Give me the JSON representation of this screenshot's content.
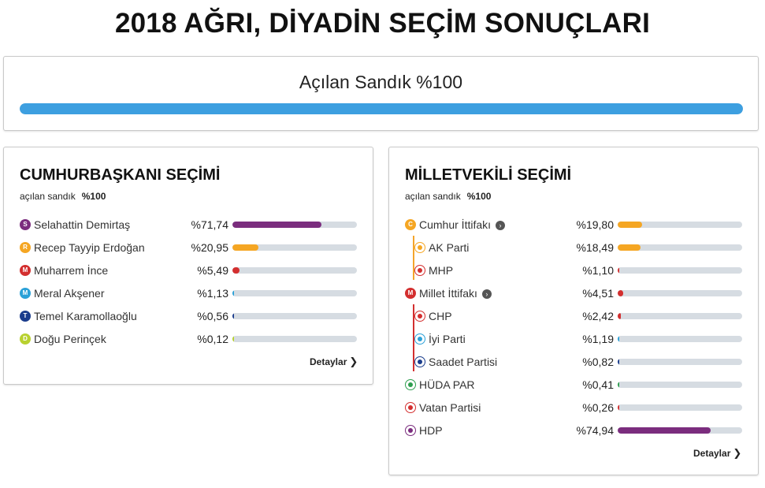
{
  "page_title": "2018 AĞRI, DİYADİN SEÇİM SONUÇLARI",
  "overall": {
    "label": "Açılan Sandık %100",
    "fill": 1.0,
    "color": "#3d9fe0"
  },
  "president": {
    "title": "CUMHURBAŞKANI SEÇİMİ",
    "sub_label": "açılan sandık",
    "sub_value": "%100",
    "details": "Detaylar",
    "candidates": [
      {
        "initial": "S",
        "name": "Selahattin Demirtaş",
        "value": "%71,74",
        "pct": 71.74,
        "color": "#7b2d7e"
      },
      {
        "initial": "R",
        "name": "Recep Tayyip Erdoğan",
        "value": "%20,95",
        "pct": 20.95,
        "color": "#f5a623"
      },
      {
        "initial": "M",
        "name": "Muharrem İnce",
        "value": "%5,49",
        "pct": 5.49,
        "color": "#d32f2f"
      },
      {
        "initial": "M",
        "name": "Meral Akşener",
        "value": "%1,13",
        "pct": 1.13,
        "color": "#2ba1d8"
      },
      {
        "initial": "T",
        "name": "Temel Karamollaoğlu",
        "value": "%0,56",
        "pct": 0.56,
        "color": "#1a3c8c"
      },
      {
        "initial": "D",
        "name": "Doğu Perinçek",
        "value": "%0,12",
        "pct": 0.12,
        "color": "#b8d12f"
      }
    ]
  },
  "parliament": {
    "title": "MİLLETVEKİLİ SEÇİMİ",
    "sub_label": "açılan sandık",
    "sub_value": "%100",
    "details": "Detaylar",
    "parties": [
      {
        "badge": "C",
        "name": "Cumhur İttifakı",
        "value": "%19,80",
        "pct": 19.8,
        "color": "#f5a623",
        "alliance": true,
        "child": false,
        "icon": "cumhur-ittifaki-icon"
      },
      {
        "badge": "",
        "name": "AK Parti",
        "value": "%18,49",
        "pct": 18.49,
        "color": "#f5a623",
        "alliance": false,
        "child": true,
        "icon": "ak-parti-icon"
      },
      {
        "badge": "",
        "name": "MHP",
        "value": "%1,10",
        "pct": 1.1,
        "color": "#d32f2f",
        "alliance": false,
        "child": true,
        "icon": "mhp-icon"
      },
      {
        "badge": "M",
        "name": "Millet İttifakı",
        "value": "%4,51",
        "pct": 4.51,
        "color": "#d32f2f",
        "alliance": true,
        "child": false,
        "icon": "millet-ittifaki-icon"
      },
      {
        "badge": "",
        "name": "CHP",
        "value": "%2,42",
        "pct": 2.42,
        "color": "#d32f2f",
        "alliance": false,
        "child": true,
        "icon": "chp-icon"
      },
      {
        "badge": "",
        "name": "İyi Parti",
        "value": "%1,19",
        "pct": 1.19,
        "color": "#2ba1d8",
        "alliance": false,
        "child": true,
        "icon": "iyi-parti-icon"
      },
      {
        "badge": "",
        "name": "Saadet Partisi",
        "value": "%0,82",
        "pct": 0.82,
        "color": "#1a3c8c",
        "alliance": false,
        "child": true,
        "icon": "saadet-partisi-icon"
      },
      {
        "badge": "",
        "name": "HÜDA PAR",
        "value": "%0,41",
        "pct": 0.41,
        "color": "#2e9e4f",
        "alliance": false,
        "child": false,
        "icon": "huda-par-icon"
      },
      {
        "badge": "",
        "name": "Vatan Partisi",
        "value": "%0,26",
        "pct": 0.26,
        "color": "#d32f2f",
        "alliance": false,
        "child": false,
        "icon": "vatan-partisi-icon"
      },
      {
        "badge": "",
        "name": "HDP",
        "value": "%74,94",
        "pct": 74.94,
        "color": "#7b2d7e",
        "alliance": false,
        "child": false,
        "icon": "hdp-icon"
      }
    ]
  }
}
